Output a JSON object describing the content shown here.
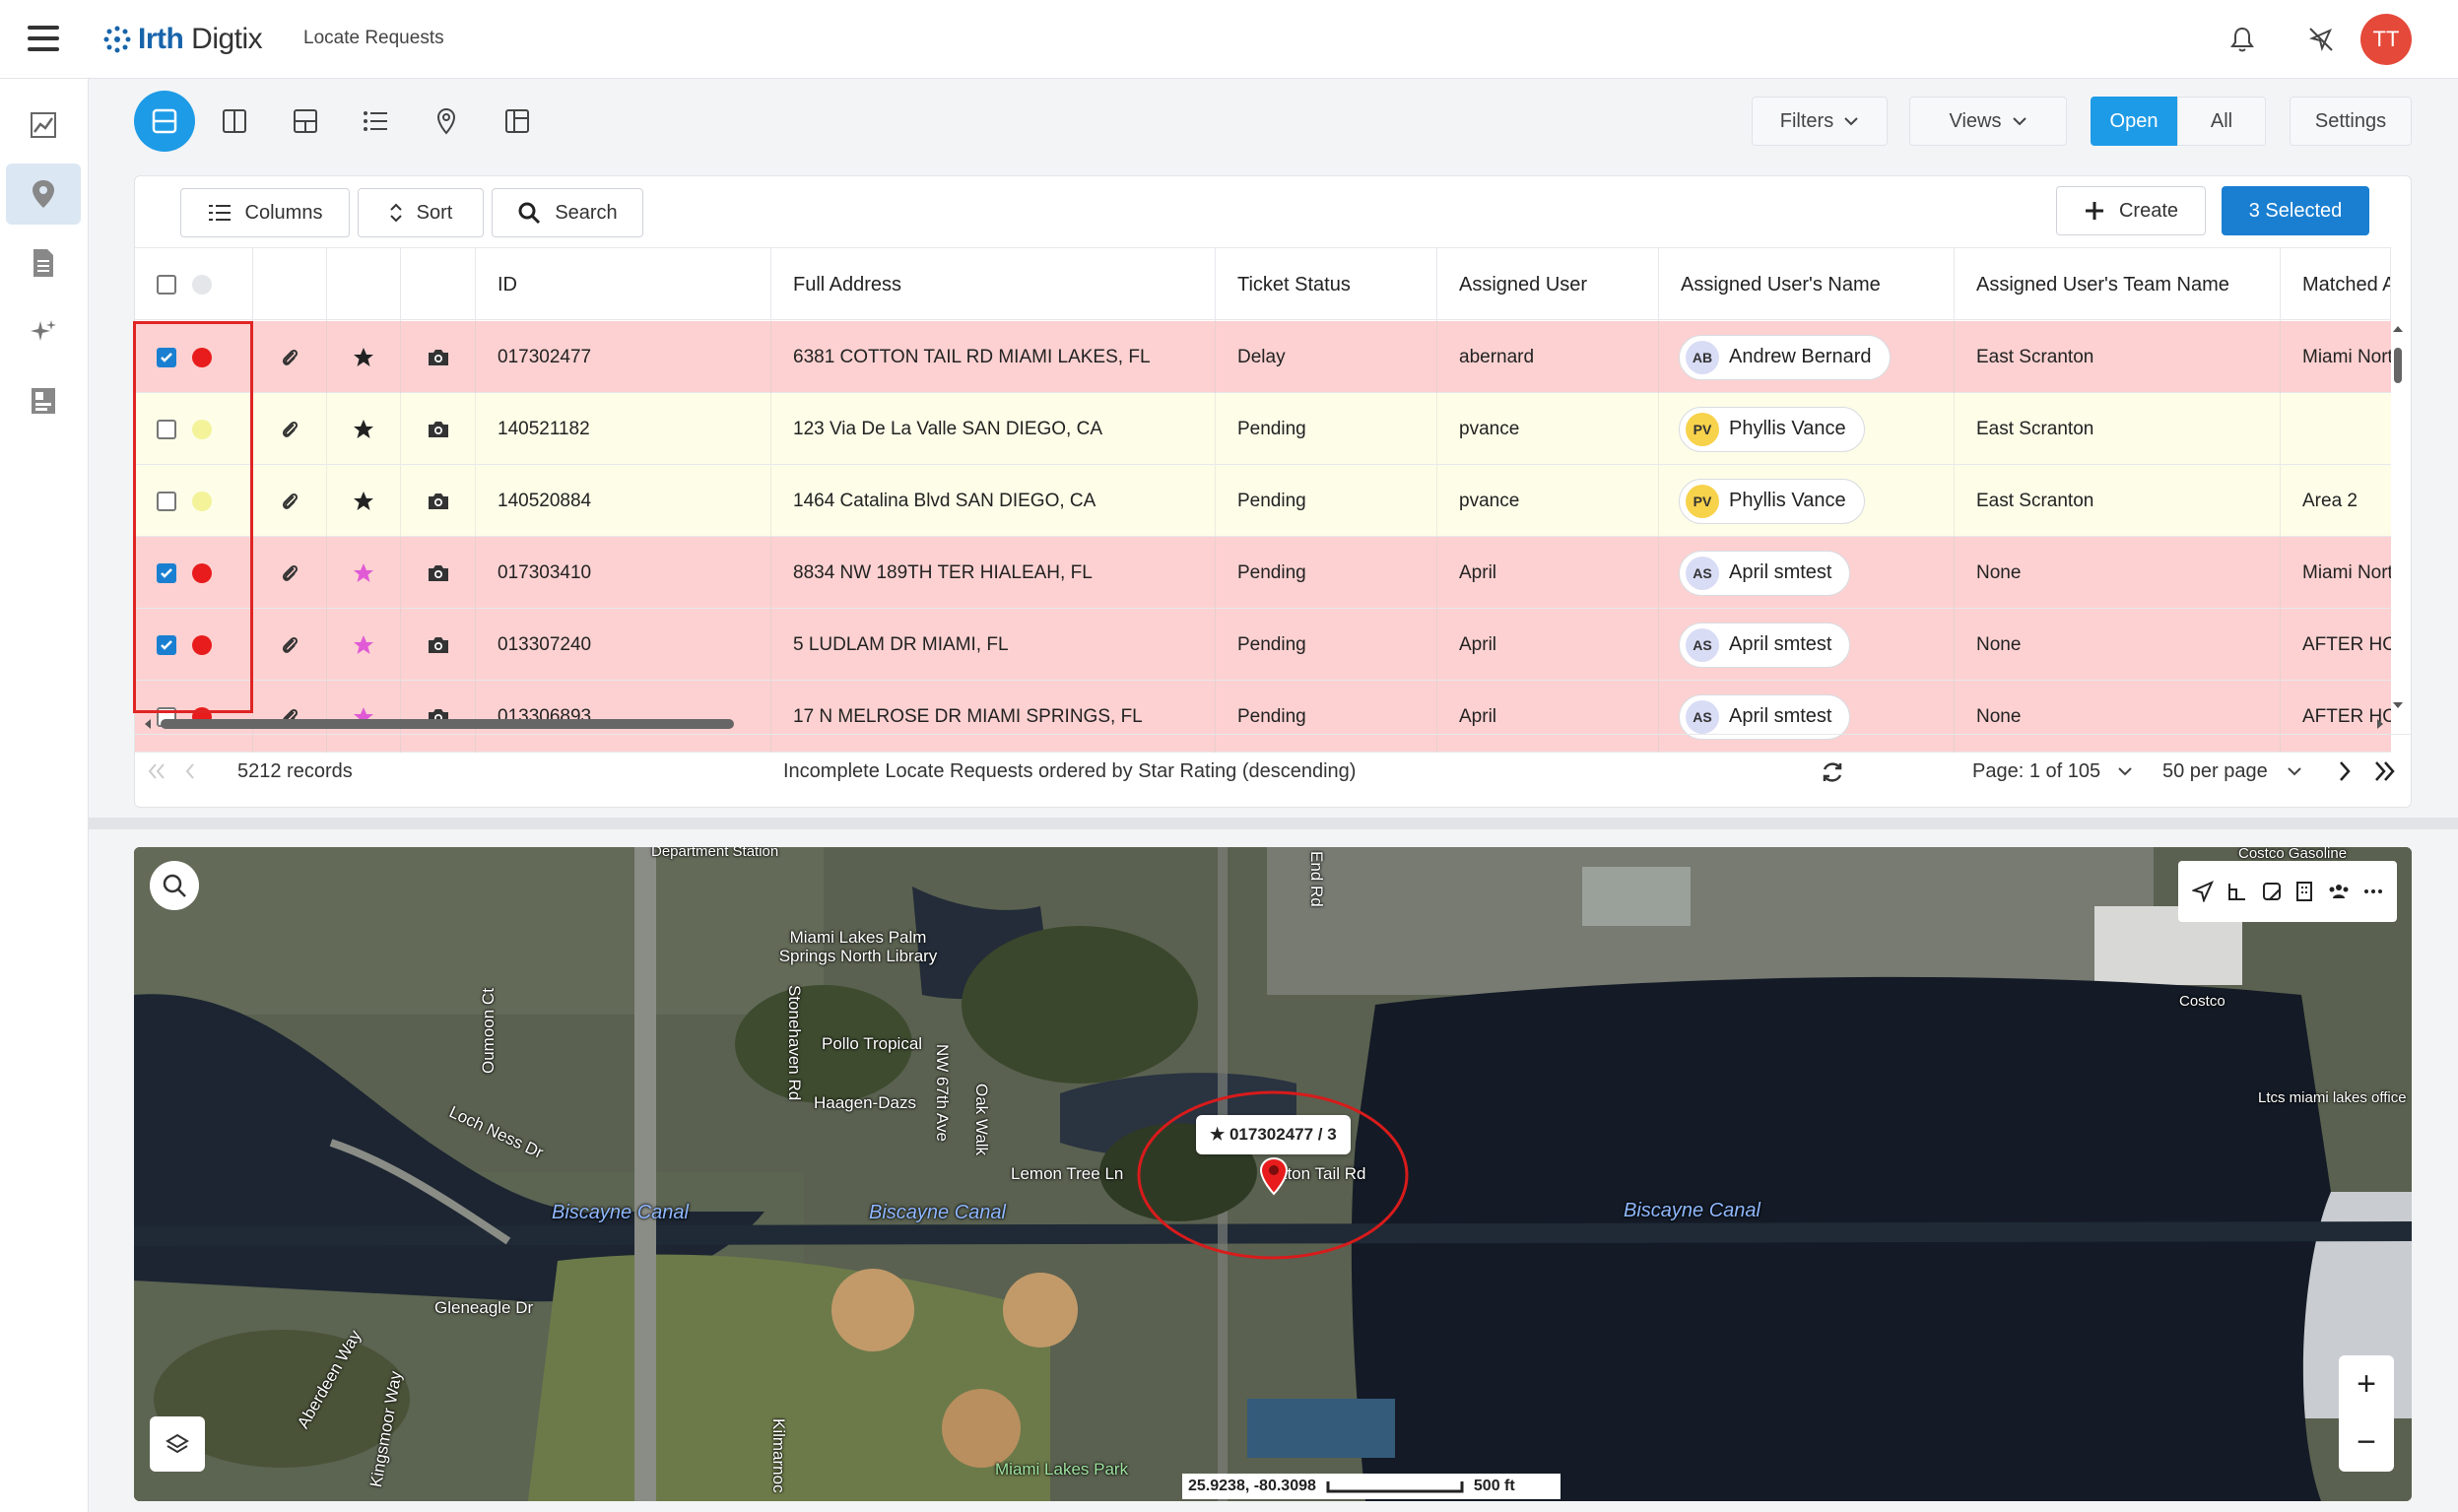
{
  "app": {
    "brand_prefix": "Irth",
    "brand_suffix": "Digtix",
    "page_title": "Locate Requests"
  },
  "header": {
    "avatar_initials": "TT"
  },
  "toolbar": {
    "filters": "Filters",
    "views": "Views",
    "open": "Open",
    "all": "All",
    "settings": "Settings"
  },
  "table_toolbar": {
    "columns": "Columns",
    "sort": "Sort",
    "search": "Search",
    "create": "Create",
    "selected": "3 Selected"
  },
  "columns": [
    "ID",
    "Full Address",
    "Ticket Status",
    "Assigned User",
    "Assigned User's Name",
    "Assigned User's Team Name",
    "Matched A"
  ],
  "rows": [
    {
      "checked": true,
      "status_color": "red",
      "star_color": "#222222",
      "id": "017302477",
      "address": "6381 COTTON TAIL RD MIAMI LAKES, FL",
      "status": "Delay",
      "user": "abernard",
      "initials": "AB",
      "name": "Andrew Bernard",
      "team": "East Scranton",
      "matched": "Miami Nort"
    },
    {
      "checked": false,
      "status_color": "yellow",
      "star_color": "#222222",
      "id": "140521182",
      "address": "123 Via De La Valle SAN DIEGO, CA",
      "status": "Pending",
      "user": "pvance",
      "initials": "PV",
      "name": "Phyllis Vance",
      "team": "East Scranton",
      "matched": ""
    },
    {
      "checked": false,
      "status_color": "yellow",
      "star_color": "#222222",
      "id": "140520884",
      "address": "1464 Catalina Blvd SAN DIEGO, CA",
      "status": "Pending",
      "user": "pvance",
      "initials": "PV",
      "name": "Phyllis Vance",
      "team": "East Scranton",
      "matched": "Area 2"
    },
    {
      "checked": true,
      "status_color": "red",
      "star_color": "#e05ad6",
      "id": "017303410",
      "address": "8834 NW 189TH TER HIALEAH, FL",
      "status": "Pending",
      "user": "April",
      "initials": "AS",
      "name": "April smtest",
      "team": "None",
      "matched": "Miami Nort"
    },
    {
      "checked": true,
      "status_color": "red",
      "star_color": "#e05ad6",
      "id": "013307240",
      "address": "5 LUDLAM DR MIAMI, FL",
      "status": "Pending",
      "user": "April",
      "initials": "AS",
      "name": "April smtest",
      "team": "None",
      "matched": "AFTER HO"
    },
    {
      "checked": false,
      "status_color": "red",
      "star_color": "#e05ad6",
      "id": "013306893",
      "address": "17 N MELROSE DR MIAMI SPRINGS, FL",
      "status": "Pending",
      "user": "April",
      "initials": "AS",
      "name": "April smtest",
      "team": "None",
      "matched": "AFTER HO"
    }
  ],
  "footer": {
    "records": "5212 records",
    "description": "Incomplete Locate Requests ordered by Star Rating (descending)",
    "page": "Page: 1 of 105",
    "per_page": "50 per page"
  },
  "map": {
    "popup": "★ 017302477 / 3",
    "coords": "25.9238, -80.3098",
    "scale": "500 ft",
    "labels": [
      "Department Station",
      "Miami Lakes Palm Springs North Library",
      "Pollo Tropical",
      "Haagen-Dazs",
      "Stonehaven Rd",
      "NW 67th Ave",
      "Oak Walk",
      "Lemon Tree Ln",
      "Cotton Tail Rd",
      "Biscayne Canal",
      "Loch Ness Dr",
      "Gleneagle Dr",
      "Miami Lakes Park",
      "Costco",
      "Costco Gasoline",
      "Ltcs miami lakes office",
      "Oumoon Ct",
      "Aberdeen Way",
      "Kingsmoor Way",
      "End Rd",
      "Kilmarnoc"
    ]
  },
  "colors": {
    "accent": "#1e9be6",
    "selected_button": "#1a7fd1",
    "row_red": "#fdd1d1",
    "row_yellow": "#fdfde8",
    "dot_red": "#e81c1c",
    "dot_yellow": "#f4f39a",
    "outline": "#e02424",
    "avatar": "#e5493a"
  }
}
